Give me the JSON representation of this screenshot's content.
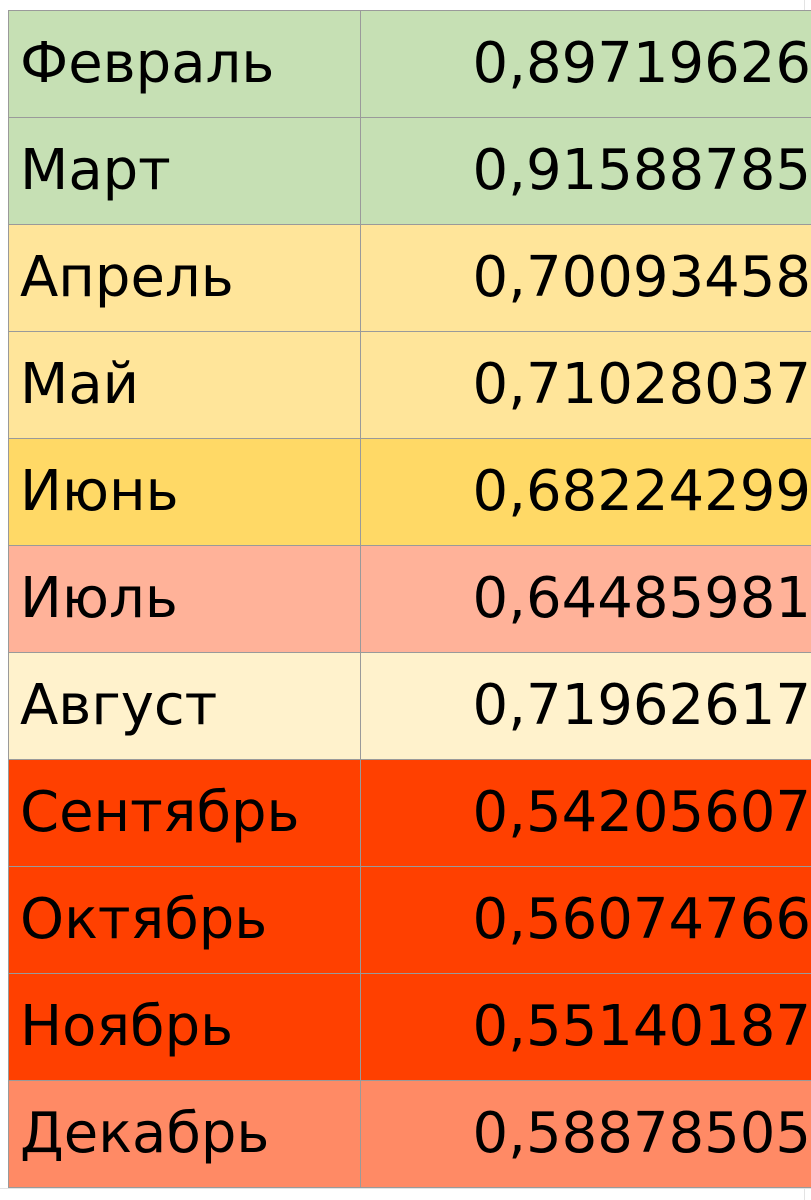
{
  "table": {
    "rows": [
      {
        "month": "Февраль",
        "value": "0,89719626",
        "color": "#c6e0b4"
      },
      {
        "month": "Март",
        "value": "0,91588785",
        "color": "#c6e0b4"
      },
      {
        "month": "Апрель",
        "value": "0,70093458",
        "color": "#ffe59a"
      },
      {
        "month": "Май",
        "value": "0,71028037",
        "color": "#ffe59a"
      },
      {
        "month": "Июнь",
        "value": "0,68224299",
        "color": "#ffd966"
      },
      {
        "month": "Июль",
        "value": "0,64485981",
        "color": "#ffb299"
      },
      {
        "month": "Август",
        "value": "0,71962617",
        "color": "#fff2cc"
      },
      {
        "month": "Сентябрь",
        "value": "0,54205607",
        "color": "#ff4000"
      },
      {
        "month": "Октябрь",
        "value": "0,56074766",
        "color": "#ff4000"
      },
      {
        "month": "Ноябрь",
        "value": "0,55140187",
        "color": "#ff4000"
      },
      {
        "month": "Декабрь",
        "value": "0,58878505",
        "color": "#ff8a65"
      }
    ]
  }
}
